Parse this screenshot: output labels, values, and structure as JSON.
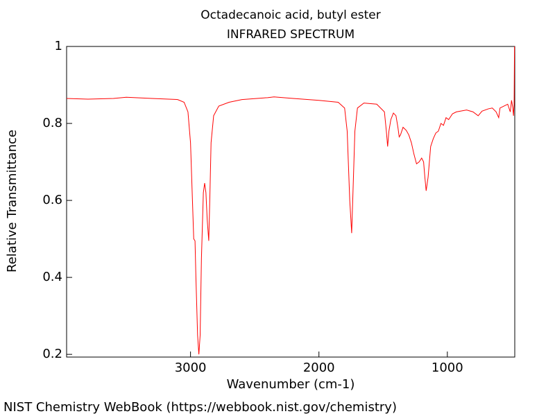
{
  "chart_data": {
    "type": "line",
    "title": "Octadecanoic acid, butyl ester",
    "subtitle": "INFRARED SPECTRUM",
    "x_label": "Wavenumber (cm-1)",
    "y_label": "Relative Transmittance",
    "xlim": [
      3965,
      475
    ],
    "ylim": [
      0.193,
      1.0
    ],
    "xticks": [
      3000,
      2000,
      1000
    ],
    "yticks": [
      0.2,
      0.4,
      0.6,
      0.8,
      1
    ],
    "series": [
      {
        "color": "#ff0000",
        "x": [
          3965,
          3800,
          3600,
          3500,
          3300,
          3100,
          3050,
          3020,
          3000,
          2985,
          2975,
          2965,
          2958,
          2945,
          2935,
          2925,
          2915,
          2900,
          2890,
          2880,
          2870,
          2858,
          2850,
          2840,
          2820,
          2780,
          2700,
          2600,
          2400,
          2350,
          2200,
          2000,
          1850,
          1800,
          1780,
          1760,
          1745,
          1735,
          1720,
          1700,
          1650,
          1550,
          1490,
          1475,
          1465,
          1455,
          1440,
          1420,
          1400,
          1385,
          1375,
          1365,
          1345,
          1320,
          1300,
          1280,
          1260,
          1240,
          1220,
          1200,
          1185,
          1175,
          1165,
          1150,
          1130,
          1110,
          1090,
          1070,
          1050,
          1030,
          1010,
          990,
          960,
          930,
          850,
          800,
          760,
          730,
          680,
          650,
          620,
          600,
          590,
          560,
          530,
          510,
          500,
          490,
          485,
          480,
          477
        ],
        "values": [
          0.865,
          0.863,
          0.865,
          0.868,
          0.865,
          0.862,
          0.855,
          0.83,
          0.75,
          0.6,
          0.5,
          0.495,
          0.4,
          0.25,
          0.2,
          0.25,
          0.45,
          0.62,
          0.645,
          0.62,
          0.55,
          0.495,
          0.6,
          0.75,
          0.82,
          0.845,
          0.855,
          0.862,
          0.867,
          0.869,
          0.865,
          0.86,
          0.855,
          0.84,
          0.78,
          0.6,
          0.515,
          0.62,
          0.78,
          0.84,
          0.853,
          0.85,
          0.83,
          0.78,
          0.74,
          0.78,
          0.81,
          0.827,
          0.82,
          0.79,
          0.765,
          0.77,
          0.79,
          0.782,
          0.77,
          0.75,
          0.72,
          0.695,
          0.7,
          0.71,
          0.7,
          0.66,
          0.625,
          0.66,
          0.74,
          0.76,
          0.775,
          0.78,
          0.8,
          0.795,
          0.815,
          0.81,
          0.825,
          0.83,
          0.835,
          0.83,
          0.82,
          0.832,
          0.838,
          0.84,
          0.83,
          0.815,
          0.84,
          0.845,
          0.85,
          0.83,
          0.86,
          0.84,
          0.82,
          0.85,
          1.0
        ]
      }
    ]
  },
  "footer": "NIST Chemistry WebBook (https://webbook.nist.gov/chemistry)"
}
